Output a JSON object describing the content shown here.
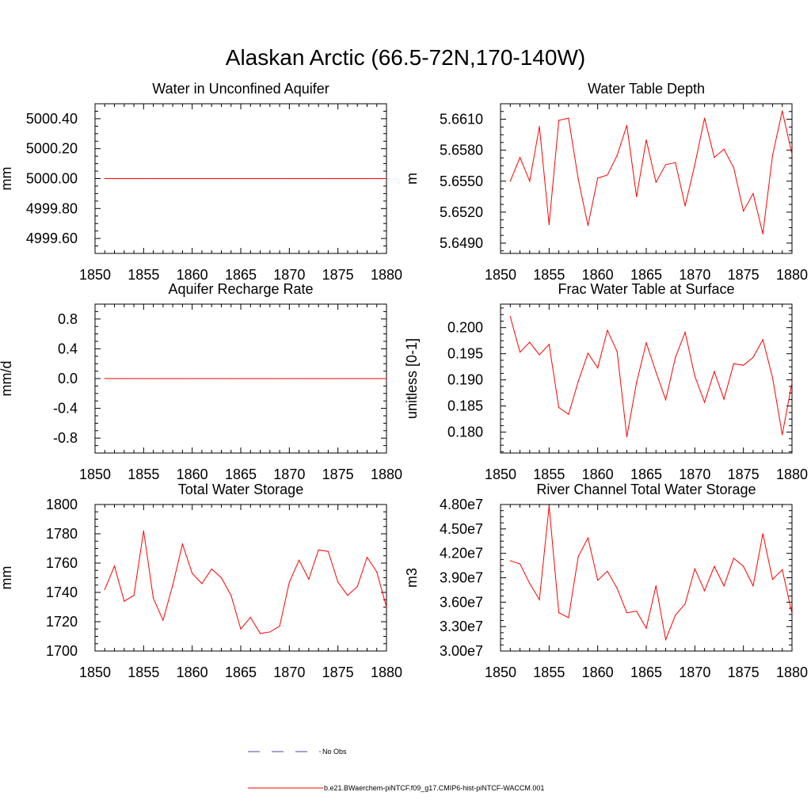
{
  "figure": {
    "title": "Alaskan Arctic (66.5-72N,170-140W)"
  },
  "legend": {
    "obs_label": "No Obs",
    "obs_color": "#4a4aa8",
    "model_label": "b.e21.BWaerchem-piNTCF.f09_g17.CMIP6-hist-piNTCF-WACCM.001",
    "model_color": "#ff0000"
  },
  "chart_data": [
    {
      "type": "line",
      "title": "Water in Unconfined Aquifer",
      "ylabel": "mm",
      "xlim": [
        1850,
        1880
      ],
      "ylim": [
        4999.5,
        5000.5
      ],
      "xticks": [
        "1850",
        "1855",
        "1860",
        "1865",
        "1870",
        "1875",
        "1880"
      ],
      "yticks": [
        {
          "v": 4999.6,
          "label": "4999.60"
        },
        {
          "v": 4999.8,
          "label": "4999.80"
        },
        {
          "v": 5000.0,
          "label": "5000.00"
        },
        {
          "v": 5000.2,
          "label": "5000.20"
        },
        {
          "v": 5000.4,
          "label": "5000.40"
        }
      ],
      "series": [
        {
          "x": [
            1851,
            1852,
            1853,
            1854,
            1855,
            1856,
            1857,
            1858,
            1859,
            1860,
            1861,
            1862,
            1863,
            1864,
            1865,
            1866,
            1867,
            1868,
            1869,
            1870,
            1871,
            1872,
            1873,
            1874,
            1875,
            1876,
            1877,
            1878,
            1879,
            1880
          ],
          "values": [
            5000,
            5000,
            5000,
            5000,
            5000,
            5000,
            5000,
            5000,
            5000,
            5000,
            5000,
            5000,
            5000,
            5000,
            5000,
            5000,
            5000,
            5000,
            5000,
            5000,
            5000,
            5000,
            5000,
            5000,
            5000,
            5000,
            5000,
            5000,
            5000,
            5000
          ]
        }
      ]
    },
    {
      "type": "line",
      "title": "Water Table Depth",
      "ylabel": "m",
      "xlim": [
        1850,
        1880
      ],
      "ylim": [
        5.648,
        5.6625
      ],
      "xticks": [
        "1850",
        "1855",
        "1860",
        "1865",
        "1870",
        "1875",
        "1880"
      ],
      "yticks": [
        {
          "v": 5.649,
          "label": "5.6490"
        },
        {
          "v": 5.652,
          "label": "5.6520"
        },
        {
          "v": 5.655,
          "label": "5.6550"
        },
        {
          "v": 5.658,
          "label": "5.6580"
        },
        {
          "v": 5.661,
          "label": "5.6610"
        }
      ],
      "series": [
        {
          "x": [
            1851,
            1852,
            1853,
            1854,
            1855,
            1856,
            1857,
            1858,
            1859,
            1860,
            1861,
            1862,
            1863,
            1864,
            1865,
            1866,
            1867,
            1868,
            1869,
            1870,
            1871,
            1872,
            1873,
            1874,
            1875,
            1876,
            1877,
            1878,
            1879,
            1880
          ],
          "values": [
            5.655,
            5.6573,
            5.655,
            5.6603,
            5.6508,
            5.6609,
            5.6611,
            5.6552,
            5.6507,
            5.6553,
            5.6556,
            5.6575,
            5.6604,
            5.6535,
            5.659,
            5.6549,
            5.6566,
            5.6568,
            5.6526,
            5.6566,
            5.6611,
            5.6573,
            5.6581,
            5.6563,
            5.6521,
            5.6538,
            5.6499,
            5.6575,
            5.6618,
            5.6576
          ]
        }
      ]
    },
    {
      "type": "line",
      "title": "Aquifer Recharge Rate",
      "ylabel": "mm/d",
      "xlim": [
        1850,
        1880
      ],
      "ylim": [
        -1.0,
        1.0
      ],
      "xticks": [
        "1850",
        "1855",
        "1860",
        "1865",
        "1870",
        "1875",
        "1880"
      ],
      "yticks": [
        {
          "v": -0.8,
          "label": "-0.8"
        },
        {
          "v": -0.4,
          "label": "-0.4"
        },
        {
          "v": 0.0,
          "label": "0.0"
        },
        {
          "v": 0.4,
          "label": "0.4"
        },
        {
          "v": 0.8,
          "label": "0.8"
        }
      ],
      "series": [
        {
          "x": [
            1851,
            1852,
            1853,
            1854,
            1855,
            1856,
            1857,
            1858,
            1859,
            1860,
            1861,
            1862,
            1863,
            1864,
            1865,
            1866,
            1867,
            1868,
            1869,
            1870,
            1871,
            1872,
            1873,
            1874,
            1875,
            1876,
            1877,
            1878,
            1879,
            1880
          ],
          "values": [
            0,
            0,
            0,
            0,
            0,
            0,
            0,
            0,
            0,
            0,
            0,
            0,
            0,
            0,
            0,
            0,
            0,
            0,
            0,
            0,
            0,
            0,
            0,
            0,
            0,
            0,
            0,
            0,
            0,
            0
          ]
        }
      ]
    },
    {
      "type": "line",
      "title": "Frac Water Table at Surface",
      "ylabel": "unitless [0-1]",
      "xlim": [
        1850,
        1880
      ],
      "ylim": [
        0.176,
        0.2045
      ],
      "xticks": [
        "1850",
        "1855",
        "1860",
        "1865",
        "1870",
        "1875",
        "1880"
      ],
      "yticks": [
        {
          "v": 0.18,
          "label": "0.180"
        },
        {
          "v": 0.185,
          "label": "0.185"
        },
        {
          "v": 0.19,
          "label": "0.190"
        },
        {
          "v": 0.195,
          "label": "0.195"
        },
        {
          "v": 0.2,
          "label": "0.200"
        }
      ],
      "series": [
        {
          "x": [
            1851,
            1852,
            1853,
            1854,
            1855,
            1856,
            1857,
            1858,
            1859,
            1860,
            1861,
            1862,
            1863,
            1864,
            1865,
            1866,
            1867,
            1868,
            1869,
            1870,
            1871,
            1872,
            1873,
            1874,
            1875,
            1876,
            1877,
            1878,
            1879,
            1880
          ],
          "values": [
            0.2021,
            0.1953,
            0.1972,
            0.1948,
            0.1968,
            0.1847,
            0.1834,
            0.1897,
            0.1951,
            0.1923,
            0.1995,
            0.1954,
            0.1791,
            0.1895,
            0.1971,
            0.1915,
            0.1862,
            0.1943,
            0.1991,
            0.1907,
            0.1857,
            0.1916,
            0.1863,
            0.1931,
            0.1928,
            0.1943,
            0.1977,
            0.1904,
            0.1795,
            0.1895
          ]
        }
      ]
    },
    {
      "type": "line",
      "title": "Total Water Storage",
      "ylabel": "mm",
      "xlim": [
        1850,
        1880
      ],
      "ylim": [
        1700,
        1800
      ],
      "xticks": [
        "1850",
        "1855",
        "1860",
        "1865",
        "1870",
        "1875",
        "1880"
      ],
      "yticks": [
        {
          "v": 1700,
          "label": "1700"
        },
        {
          "v": 1720,
          "label": "1720"
        },
        {
          "v": 1740,
          "label": "1740"
        },
        {
          "v": 1760,
          "label": "1760"
        },
        {
          "v": 1780,
          "label": "1780"
        },
        {
          "v": 1800,
          "label": "1800"
        }
      ],
      "series": [
        {
          "x": [
            1851,
            1852,
            1853,
            1854,
            1855,
            1856,
            1857,
            1858,
            1859,
            1860,
            1861,
            1862,
            1863,
            1864,
            1865,
            1866,
            1867,
            1868,
            1869,
            1870,
            1871,
            1872,
            1873,
            1874,
            1875,
            1876,
            1877,
            1878,
            1879,
            1880
          ],
          "values": [
            1742,
            1758,
            1734,
            1738,
            1782,
            1736,
            1721,
            1745,
            1773,
            1753,
            1746,
            1756,
            1750,
            1738,
            1715,
            1723,
            1712,
            1713,
            1717,
            1747,
            1762,
            1749,
            1769,
            1768,
            1747,
            1738,
            1744,
            1764,
            1754,
            1730
          ]
        }
      ]
    },
    {
      "type": "line",
      "title": "River Channel Total Water Storage",
      "ylabel": "m3",
      "xlim": [
        1850,
        1880
      ],
      "ylim": [
        30000000,
        48000000
      ],
      "xticks": [
        "1850",
        "1855",
        "1860",
        "1865",
        "1870",
        "1875",
        "1880"
      ],
      "yticks": [
        {
          "v": 30000000,
          "label": "3.00e7"
        },
        {
          "v": 33000000,
          "label": "3.30e7"
        },
        {
          "v": 36000000,
          "label": "3.60e7"
        },
        {
          "v": 39000000,
          "label": "3.90e7"
        },
        {
          "v": 42000000,
          "label": "4.20e7"
        },
        {
          "v": 45000000,
          "label": "4.50e7"
        },
        {
          "v": 48000000,
          "label": "4.80e7"
        }
      ],
      "series": [
        {
          "x": [
            1851,
            1852,
            1853,
            1854,
            1855,
            1856,
            1857,
            1858,
            1859,
            1860,
            1861,
            1862,
            1863,
            1864,
            1865,
            1866,
            1867,
            1868,
            1869,
            1870,
            1871,
            1872,
            1873,
            1874,
            1875,
            1876,
            1877,
            1878,
            1879,
            1880
          ],
          "values": [
            41100000,
            40700000,
            38300000,
            36300000,
            47800000,
            34700000,
            34100000,
            41600000,
            43900000,
            38700000,
            39800000,
            37700000,
            34700000,
            34900000,
            32800000,
            38000000,
            31400000,
            34400000,
            35800000,
            40100000,
            37400000,
            40400000,
            38000000,
            41400000,
            40400000,
            38000000,
            44400000,
            38800000,
            40000000,
            34600000
          ]
        }
      ]
    }
  ]
}
